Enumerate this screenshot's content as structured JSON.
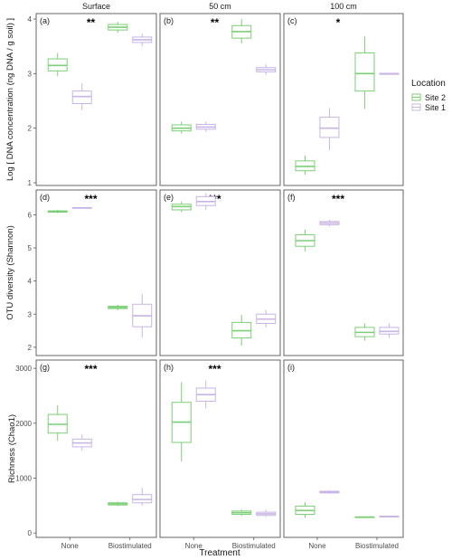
{
  "chart_data": {
    "type": "boxplot",
    "x_title": "Treatment",
    "categories": [
      "None",
      "Biostimulated"
    ],
    "columns": [
      "Surface",
      "50 cm",
      "100 cm"
    ],
    "legend": {
      "title": "Location",
      "position": "right",
      "items": [
        {
          "name": "Site 2",
          "color": "#7ccf76"
        },
        {
          "name": "Site 1",
          "color": "#c8b4e6"
        }
      ]
    },
    "rows": [
      {
        "y_title": "Log [ DNA concentration (ng DNA / g soil) ]",
        "ylim": [
          0.95,
          4.1
        ],
        "ticks": [
          {
            "v": 1,
            "label": "1"
          },
          {
            "v": 2,
            "label": "2"
          },
          {
            "v": 3,
            "label": "3"
          },
          {
            "v": 4,
            "label": "4"
          }
        ],
        "panels": [
          {
            "label": "(a)",
            "sig": "**",
            "boxes": [
              {
                "site": "Site 2",
                "category": "None",
                "min": 2.95,
                "q1": 3.05,
                "median": 3.15,
                "q3": 3.27,
                "max": 3.38
              },
              {
                "site": "Site 1",
                "category": "None",
                "min": 2.33,
                "q1": 2.45,
                "median": 2.58,
                "q3": 2.68,
                "max": 2.82
              },
              {
                "site": "Site 2",
                "category": "Biostimulated",
                "min": 3.75,
                "q1": 3.8,
                "median": 3.85,
                "q3": 3.9,
                "max": 3.95
              },
              {
                "site": "Site 1",
                "category": "Biostimulated",
                "min": 3.5,
                "q1": 3.57,
                "median": 3.62,
                "q3": 3.67,
                "max": 3.73
              }
            ]
          },
          {
            "label": "(b)",
            "sig": "**",
            "boxes": [
              {
                "site": "Site 2",
                "category": "None",
                "min": 1.9,
                "q1": 1.95,
                "median": 2.0,
                "q3": 2.06,
                "max": 2.12
              },
              {
                "site": "Site 1",
                "category": "None",
                "min": 1.93,
                "q1": 1.98,
                "median": 2.02,
                "q3": 2.07,
                "max": 2.12
              },
              {
                "site": "Site 2",
                "category": "Biostimulated",
                "min": 3.55,
                "q1": 3.65,
                "median": 3.77,
                "q3": 3.88,
                "max": 4.0
              },
              {
                "site": "Site 1",
                "category": "Biostimulated",
                "min": 2.98,
                "q1": 3.03,
                "median": 3.07,
                "q3": 3.11,
                "max": 3.17
              }
            ]
          },
          {
            "label": "(c)",
            "sig": "*",
            "boxes": [
              {
                "site": "Site 2",
                "category": "None",
                "min": 1.15,
                "q1": 1.22,
                "median": 1.3,
                "q3": 1.4,
                "max": 1.5
              },
              {
                "site": "Site 1",
                "category": "None",
                "min": 1.6,
                "q1": 1.83,
                "median": 2.0,
                "q3": 2.2,
                "max": 2.37
              },
              {
                "site": "Site 2",
                "category": "Biostimulated",
                "min": 2.35,
                "q1": 2.68,
                "median": 3.0,
                "q3": 3.38,
                "max": 3.68
              },
              {
                "site": "Site 1",
                "category": "Biostimulated",
                "min": 3.0,
                "q1": 3.0,
                "median": 3.0,
                "q3": 3.0,
                "max": 3.0
              }
            ]
          }
        ]
      },
      {
        "y_title": "OTU diversity (Shannon)",
        "ylim": [
          1.75,
          6.75
        ],
        "ticks": [
          {
            "v": 2,
            "label": "2"
          },
          {
            "v": 3,
            "label": "3"
          },
          {
            "v": 4,
            "label": "4"
          },
          {
            "v": 5,
            "label": "5"
          },
          {
            "v": 6,
            "label": "6"
          }
        ],
        "panels": [
          {
            "label": "(d)",
            "sig": "***",
            "boxes": [
              {
                "site": "Site 2",
                "category": "None",
                "min": 6.05,
                "q1": 6.08,
                "median": 6.1,
                "q3": 6.12,
                "max": 6.15
              },
              {
                "site": "Site 1",
                "category": "None",
                "min": 6.19,
                "q1": 6.2,
                "median": 6.21,
                "q3": 6.22,
                "max": 6.23
              },
              {
                "site": "Site 2",
                "category": "Biostimulated",
                "min": 3.12,
                "q1": 3.17,
                "median": 3.2,
                "q3": 3.24,
                "max": 3.28
              },
              {
                "site": "Site 1",
                "category": "Biostimulated",
                "min": 2.3,
                "q1": 2.62,
                "median": 2.95,
                "q3": 3.3,
                "max": 3.62
              }
            ]
          },
          {
            "label": "(e)",
            "sig": "***",
            "boxes": [
              {
                "site": "Site 2",
                "category": "None",
                "min": 6.08,
                "q1": 6.15,
                "median": 6.25,
                "q3": 6.32,
                "max": 6.4
              },
              {
                "site": "Site 1",
                "category": "None",
                "min": 6.15,
                "q1": 6.28,
                "median": 6.4,
                "q3": 6.55,
                "max": 6.65
              },
              {
                "site": "Site 2",
                "category": "Biostimulated",
                "min": 2.05,
                "q1": 2.28,
                "median": 2.5,
                "q3": 2.75,
                "max": 2.98
              },
              {
                "site": "Site 1",
                "category": "Biostimulated",
                "min": 2.6,
                "q1": 2.72,
                "median": 2.85,
                "q3": 3.0,
                "max": 3.12
              }
            ]
          },
          {
            "label": "(f)",
            "sig": "***",
            "boxes": [
              {
                "site": "Site 2",
                "category": "None",
                "min": 4.9,
                "q1": 5.05,
                "median": 5.22,
                "q3": 5.4,
                "max": 5.55
              },
              {
                "site": "Site 1",
                "category": "None",
                "min": 5.65,
                "q1": 5.7,
                "median": 5.75,
                "q3": 5.8,
                "max": 5.85
              },
              {
                "site": "Site 2",
                "category": "Biostimulated",
                "min": 2.2,
                "q1": 2.32,
                "median": 2.45,
                "q3": 2.6,
                "max": 2.72
              },
              {
                "site": "Site 1",
                "category": "Biostimulated",
                "min": 2.3,
                "q1": 2.4,
                "median": 2.48,
                "q3": 2.6,
                "max": 2.72
              }
            ]
          }
        ]
      },
      {
        "y_title": "Richness (Chao1)",
        "ylim": [
          -80,
          3150
        ],
        "ticks": [
          {
            "v": 0,
            "label": "0"
          },
          {
            "v": 1000,
            "label": "1000"
          },
          {
            "v": 2000,
            "label": "2000"
          },
          {
            "v": 3000,
            "label": "3000"
          }
        ],
        "panels": [
          {
            "label": "(g)",
            "sig": "***",
            "boxes": [
              {
                "site": "Site 2",
                "category": "None",
                "min": 1680,
                "q1": 1820,
                "median": 1980,
                "q3": 2160,
                "max": 2330
              },
              {
                "site": "Site 1",
                "category": "None",
                "min": 1500,
                "q1": 1570,
                "median": 1640,
                "q3": 1710,
                "max": 1790
              },
              {
                "site": "Site 2",
                "category": "Biostimulated",
                "min": 490,
                "q1": 510,
                "median": 530,
                "q3": 550,
                "max": 570
              },
              {
                "site": "Site 1",
                "category": "Biostimulated",
                "min": 500,
                "q1": 550,
                "median": 610,
                "q3": 700,
                "max": 820
              }
            ]
          },
          {
            "label": "(h)",
            "sig": "***",
            "boxes": [
              {
                "site": "Site 2",
                "category": "None",
                "min": 1300,
                "q1": 1650,
                "median": 2020,
                "q3": 2380,
                "max": 2750
              },
              {
                "site": "Site 1",
                "category": "None",
                "min": 2270,
                "q1": 2400,
                "median": 2520,
                "q3": 2640,
                "max": 2780
              },
              {
                "site": "Site 2",
                "category": "Biostimulated",
                "min": 310,
                "q1": 340,
                "median": 370,
                "q3": 400,
                "max": 430
              },
              {
                "site": "Site 1",
                "category": "Biostimulated",
                "min": 290,
                "q1": 320,
                "median": 350,
                "q3": 380,
                "max": 420
              }
            ]
          },
          {
            "label": "(i)",
            "sig": "",
            "boxes": [
              {
                "site": "Site 2",
                "category": "None",
                "min": 280,
                "q1": 340,
                "median": 410,
                "q3": 490,
                "max": 560
              },
              {
                "site": "Site 1",
                "category": "None",
                "min": 710,
                "q1": 730,
                "median": 745,
                "q3": 760,
                "max": 780
              },
              {
                "site": "Site 2",
                "category": "Biostimulated",
                "min": 275,
                "q1": 282,
                "median": 288,
                "q3": 294,
                "max": 300
              },
              {
                "site": "Site 1",
                "category": "Biostimulated",
                "min": 292,
                "q1": 296,
                "median": 300,
                "q3": 304,
                "max": 308
              }
            ]
          }
        ]
      }
    ]
  }
}
